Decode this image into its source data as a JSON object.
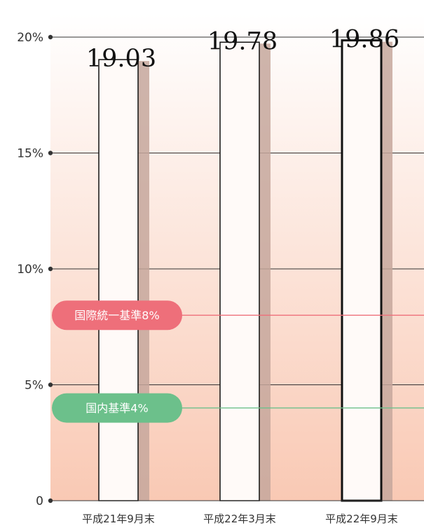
{
  "chart_data": {
    "type": "bar",
    "categories": [
      "平成21年9月末",
      "平成22年3月末",
      "平成22年9月末"
    ],
    "values": [
      19.03,
      19.78,
      19.86
    ],
    "value_labels": [
      "19.03",
      "19.78",
      "19.86"
    ],
    "ylim": [
      0,
      20
    ],
    "yticks": [
      {
        "value": 0,
        "label": "0"
      },
      {
        "value": 5,
        "label": "5%"
      },
      {
        "value": 10,
        "label": "10%"
      },
      {
        "value": 15,
        "label": "15%"
      },
      {
        "value": 20,
        "label": "20%"
      }
    ],
    "reference_lines": [
      {
        "value": 8,
        "label": "国際統一基準8%",
        "color": "#ee6f7a"
      },
      {
        "value": 4,
        "label": "国内基準4%",
        "color": "#6cc08b"
      }
    ],
    "highlighted_index": 2,
    "grid": true,
    "legend": "none",
    "colors": {
      "background_top": "#ffffff",
      "background_bottom": "#f9c9b4",
      "bar_fill": "#fffaf8",
      "bar_shadow": "#c5a79c",
      "gridline": "#333333",
      "international": "#ee6f7a",
      "domestic": "#6cc08b"
    }
  }
}
